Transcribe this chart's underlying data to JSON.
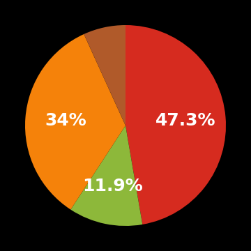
{
  "slices": [
    47.3,
    11.9,
    34.0,
    6.8
  ],
  "colors": [
    "#d62b1f",
    "#8db83a",
    "#f5820a",
    "#b05a2a"
  ],
  "labels": [
    "47.3%",
    "11.9%",
    "34%",
    ""
  ],
  "label_show": [
    true,
    true,
    true,
    false
  ],
  "label_radii": [
    0.6,
    0.62,
    0.6,
    0.58
  ],
  "background_color": "#000000",
  "text_color": "#ffffff",
  "text_fontsize": 18,
  "startangle": 90
}
